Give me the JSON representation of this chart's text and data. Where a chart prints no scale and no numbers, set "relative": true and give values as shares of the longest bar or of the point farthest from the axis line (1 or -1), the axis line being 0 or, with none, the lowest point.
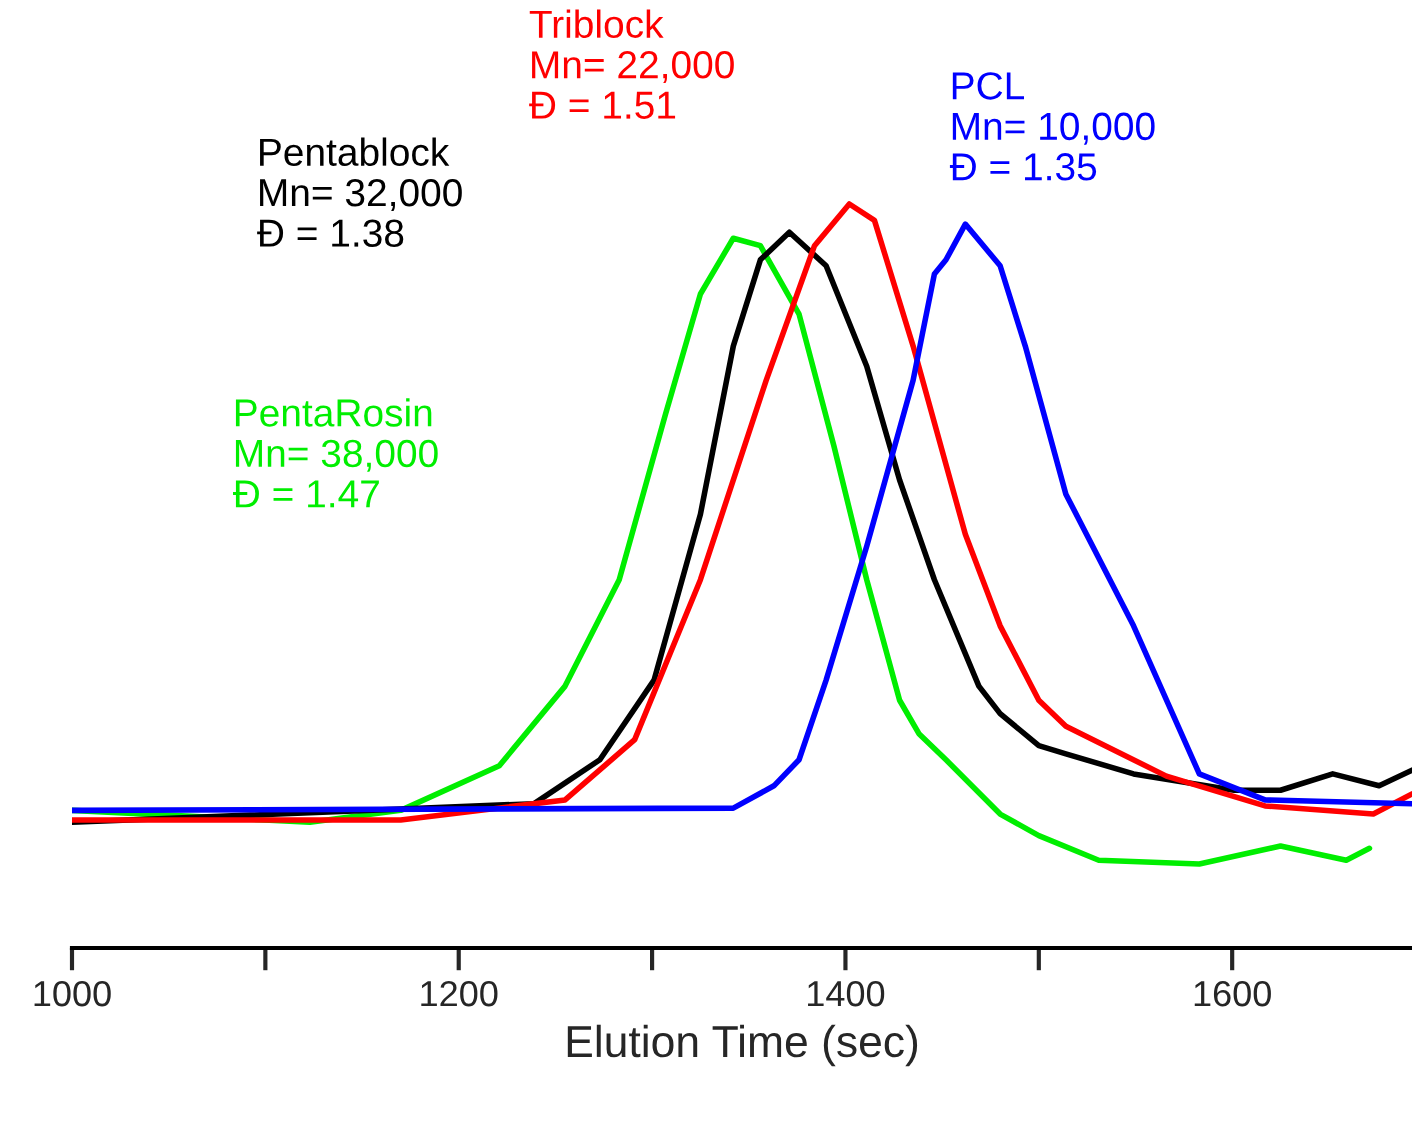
{
  "chart_data": {
    "type": "line",
    "relative": true,
    "xlabel": "Elution Time (sec)",
    "xlim": [
      1000,
      1693
    ],
    "xticks": [
      1000,
      {
        "value": 1100,
        "label": null
      },
      1200,
      {
        "value": 1300,
        "label": null
      },
      1400,
      {
        "value": 1500,
        "label": null
      },
      1600
    ],
    "tick_labels": "x",
    "grid": false,
    "legend": false,
    "marker": "none",
    "line_style": "solid",
    "series": [
      {
        "name": "PentaRosin",
        "color": "#00ee00",
        "x": [
          1000,
          1123,
          1170,
          1221,
          1255,
          1283,
          1307,
          1325,
          1342,
          1356,
          1376,
          1394,
          1411,
          1428,
          1438,
          1452,
          1480,
          1500,
          1531,
          1583,
          1625,
          1659,
          1671
        ],
        "values": [
          0.185,
          0.169,
          0.185,
          0.245,
          0.352,
          0.495,
          0.718,
          0.879,
          0.954,
          0.944,
          0.852,
          0.675,
          0.495,
          0.333,
          0.288,
          0.253,
          0.18,
          0.151,
          0.118,
          0.113,
          0.137,
          0.118,
          0.134
        ]
      },
      {
        "name": "Pentablock",
        "color": "#000000",
        "x": [
          1000,
          1239,
          1273,
          1301,
          1325,
          1342,
          1356,
          1371,
          1390,
          1411,
          1428,
          1446,
          1469,
          1480,
          1500,
          1514,
          1549,
          1601,
          1625,
          1652,
          1676,
          1693
        ],
        "values": [
          0.169,
          0.194,
          0.253,
          0.36,
          0.583,
          0.809,
          0.925,
          0.962,
          0.917,
          0.782,
          0.629,
          0.495,
          0.352,
          0.315,
          0.272,
          0.261,
          0.234,
          0.212,
          0.212,
          0.234,
          0.218,
          0.239
        ]
      },
      {
        "name": "Triblock",
        "color": "#ff0000",
        "x": [
          1000,
          1170,
          1255,
          1291,
          1325,
          1359,
          1384,
          1402,
          1415,
          1435,
          1462,
          1480,
          1500,
          1514,
          1566,
          1617,
          1673,
          1693
        ],
        "values": [
          0.172,
          0.172,
          0.199,
          0.28,
          0.495,
          0.763,
          0.944,
          1.0,
          0.978,
          0.809,
          0.556,
          0.433,
          0.333,
          0.298,
          0.231,
          0.191,
          0.18,
          0.207
        ]
      },
      {
        "name": "PCL",
        "color": "#0000ff",
        "x": [
          1000,
          1342,
          1363,
          1376,
          1390,
          1411,
          1435,
          1446,
          1452,
          1462,
          1480,
          1493,
          1514,
          1549,
          1583,
          1617,
          1693
        ],
        "values": [
          0.185,
          0.188,
          0.218,
          0.253,
          0.36,
          0.54,
          0.763,
          0.906,
          0.925,
          0.973,
          0.917,
          0.809,
          0.61,
          0.433,
          0.234,
          0.199,
          0.194
        ]
      }
    ],
    "annotations": [
      "Mn= 38,000",
      "Đ = 1.47",
      "Mn= 32,000",
      "Đ = 1.38",
      "Mn= 22,000",
      "Đ = 1.51",
      "Mn= 10,000",
      "Đ = 1.35"
    ]
  }
}
